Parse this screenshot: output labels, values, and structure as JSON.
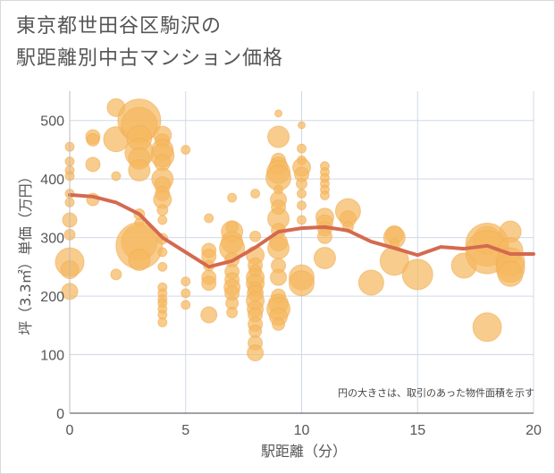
{
  "title_line1": "東京都世田谷区駒沢の",
  "title_line2": "駅距離別中古マンション価格",
  "chart_data": {
    "type": "scatter",
    "xlabel": "駅距離（分）",
    "ylabel": "坪（3.3㎡）単価（万円）",
    "xlim": [
      0,
      20
    ],
    "ylim": [
      0,
      550
    ],
    "x_ticks": [
      0,
      5,
      10,
      15,
      20
    ],
    "y_ticks": [
      0,
      100,
      200,
      300,
      400,
      500
    ],
    "grid": true,
    "note": "円の大きさは、取引のあった物件面積を示す",
    "colors": {
      "bubble": "#f5b860",
      "line": "#d46a50"
    },
    "bubbles": [
      {
        "x": 0,
        "y": 455,
        "r": 5
      },
      {
        "x": 0,
        "y": 430,
        "r": 5
      },
      {
        "x": 0,
        "y": 415,
        "r": 5
      },
      {
        "x": 0,
        "y": 405,
        "r": 5
      },
      {
        "x": 0,
        "y": 375,
        "r": 5
      },
      {
        "x": 0,
        "y": 360,
        "r": 5
      },
      {
        "x": 0,
        "y": 330,
        "r": 8
      },
      {
        "x": 0,
        "y": 305,
        "r": 6
      },
      {
        "x": 0,
        "y": 258,
        "r": 16
      },
      {
        "x": 0,
        "y": 245,
        "r": 10
      },
      {
        "x": 0,
        "y": 208,
        "r": 9
      },
      {
        "x": 1,
        "y": 472,
        "r": 8
      },
      {
        "x": 1,
        "y": 467,
        "r": 7
      },
      {
        "x": 1,
        "y": 425,
        "r": 8
      },
      {
        "x": 1,
        "y": 365,
        "r": 7
      },
      {
        "x": 2,
        "y": 522,
        "r": 10
      },
      {
        "x": 2,
        "y": 468,
        "r": 14
      },
      {
        "x": 2,
        "y": 405,
        "r": 5
      },
      {
        "x": 2,
        "y": 237,
        "r": 6
      },
      {
        "x": 3,
        "y": 500,
        "r": 24
      },
      {
        "x": 3,
        "y": 492,
        "r": 20
      },
      {
        "x": 3,
        "y": 470,
        "r": 14
      },
      {
        "x": 3,
        "y": 445,
        "r": 16
      },
      {
        "x": 3,
        "y": 435,
        "r": 12
      },
      {
        "x": 3,
        "y": 415,
        "r": 12
      },
      {
        "x": 3,
        "y": 340,
        "r": 6
      },
      {
        "x": 3,
        "y": 325,
        "r": 5
      },
      {
        "x": 3,
        "y": 292,
        "r": 20
      },
      {
        "x": 3,
        "y": 286,
        "r": 26
      },
      {
        "x": 3,
        "y": 262,
        "r": 12
      },
      {
        "x": 4,
        "y": 475,
        "r": 10
      },
      {
        "x": 4,
        "y": 465,
        "r": 8
      },
      {
        "x": 4,
        "y": 450,
        "r": 12
      },
      {
        "x": 4,
        "y": 440,
        "r": 13
      },
      {
        "x": 4,
        "y": 428,
        "r": 9
      },
      {
        "x": 4,
        "y": 400,
        "r": 12
      },
      {
        "x": 4,
        "y": 390,
        "r": 9
      },
      {
        "x": 4,
        "y": 375,
        "r": 8
      },
      {
        "x": 4,
        "y": 365,
        "r": 10
      },
      {
        "x": 4,
        "y": 347,
        "r": 6
      },
      {
        "x": 4,
        "y": 330,
        "r": 5
      },
      {
        "x": 4,
        "y": 298,
        "r": 6
      },
      {
        "x": 4,
        "y": 275,
        "r": 5
      },
      {
        "x": 4,
        "y": 250,
        "r": 5
      },
      {
        "x": 4,
        "y": 215,
        "r": 5
      },
      {
        "x": 4,
        "y": 205,
        "r": 5
      },
      {
        "x": 4,
        "y": 195,
        "r": 5
      },
      {
        "x": 4,
        "y": 188,
        "r": 5
      },
      {
        "x": 4,
        "y": 178,
        "r": 5
      },
      {
        "x": 4,
        "y": 168,
        "r": 5
      },
      {
        "x": 4,
        "y": 155,
        "r": 5
      },
      {
        "x": 5,
        "y": 450,
        "r": 5
      },
      {
        "x": 5,
        "y": 225,
        "r": 5
      },
      {
        "x": 5,
        "y": 205,
        "r": 5
      },
      {
        "x": 5,
        "y": 185,
        "r": 5
      },
      {
        "x": 6,
        "y": 333,
        "r": 5
      },
      {
        "x": 6,
        "y": 278,
        "r": 8
      },
      {
        "x": 6,
        "y": 268,
        "r": 8
      },
      {
        "x": 6,
        "y": 252,
        "r": 6
      },
      {
        "x": 6,
        "y": 232,
        "r": 8
      },
      {
        "x": 6,
        "y": 222,
        "r": 8
      },
      {
        "x": 6,
        "y": 168,
        "r": 9
      },
      {
        "x": 7,
        "y": 368,
        "r": 5
      },
      {
        "x": 7,
        "y": 318,
        "r": 7
      },
      {
        "x": 7,
        "y": 310,
        "r": 12
      },
      {
        "x": 7,
        "y": 292,
        "r": 12
      },
      {
        "x": 7,
        "y": 282,
        "r": 14
      },
      {
        "x": 7,
        "y": 262,
        "r": 8
      },
      {
        "x": 7,
        "y": 242,
        "r": 8
      },
      {
        "x": 7,
        "y": 228,
        "r": 8
      },
      {
        "x": 7,
        "y": 215,
        "r": 9
      },
      {
        "x": 7,
        "y": 205,
        "r": 8
      },
      {
        "x": 7,
        "y": 188,
        "r": 7
      },
      {
        "x": 7,
        "y": 172,
        "r": 6
      },
      {
        "x": 8,
        "y": 375,
        "r": 5
      },
      {
        "x": 8,
        "y": 302,
        "r": 6
      },
      {
        "x": 8,
        "y": 270,
        "r": 10
      },
      {
        "x": 8,
        "y": 253,
        "r": 8
      },
      {
        "x": 8,
        "y": 243,
        "r": 7
      },
      {
        "x": 8,
        "y": 232,
        "r": 10
      },
      {
        "x": 8,
        "y": 222,
        "r": 10
      },
      {
        "x": 8,
        "y": 212,
        "r": 8
      },
      {
        "x": 8,
        "y": 205,
        "r": 9
      },
      {
        "x": 8,
        "y": 192,
        "r": 10
      },
      {
        "x": 8,
        "y": 178,
        "r": 9
      },
      {
        "x": 8,
        "y": 168,
        "r": 8
      },
      {
        "x": 8,
        "y": 152,
        "r": 8
      },
      {
        "x": 8,
        "y": 140,
        "r": 7
      },
      {
        "x": 8,
        "y": 120,
        "r": 8
      },
      {
        "x": 8,
        "y": 103,
        "r": 9
      },
      {
        "x": 9,
        "y": 512,
        "r": 4
      },
      {
        "x": 9,
        "y": 472,
        "r": 12
      },
      {
        "x": 9,
        "y": 432,
        "r": 8
      },
      {
        "x": 9,
        "y": 422,
        "r": 10
      },
      {
        "x": 9,
        "y": 412,
        "r": 13
      },
      {
        "x": 9,
        "y": 402,
        "r": 14
      },
      {
        "x": 9,
        "y": 382,
        "r": 5
      },
      {
        "x": 9,
        "y": 365,
        "r": 9
      },
      {
        "x": 9,
        "y": 352,
        "r": 8
      },
      {
        "x": 9,
        "y": 332,
        "r": 12
      },
      {
        "x": 9,
        "y": 312,
        "r": 8
      },
      {
        "x": 9,
        "y": 292,
        "r": 10
      },
      {
        "x": 9,
        "y": 282,
        "r": 12
      },
      {
        "x": 9,
        "y": 252,
        "r": 8
      },
      {
        "x": 9,
        "y": 232,
        "r": 9
      },
      {
        "x": 9,
        "y": 200,
        "r": 8
      },
      {
        "x": 9,
        "y": 187,
        "r": 11
      },
      {
        "x": 9,
        "y": 178,
        "r": 13
      },
      {
        "x": 9,
        "y": 165,
        "r": 10
      },
      {
        "x": 9,
        "y": 152,
        "r": 7
      },
      {
        "x": 10,
        "y": 492,
        "r": 4
      },
      {
        "x": 10,
        "y": 452,
        "r": 5
      },
      {
        "x": 10,
        "y": 432,
        "r": 5
      },
      {
        "x": 10,
        "y": 420,
        "r": 10
      },
      {
        "x": 10,
        "y": 408,
        "r": 8
      },
      {
        "x": 10,
        "y": 392,
        "r": 6
      },
      {
        "x": 10,
        "y": 375,
        "r": 5
      },
      {
        "x": 10,
        "y": 355,
        "r": 5
      },
      {
        "x": 10,
        "y": 330,
        "r": 5
      },
      {
        "x": 10,
        "y": 232,
        "r": 14
      },
      {
        "x": 10,
        "y": 222,
        "r": 14
      },
      {
        "x": 11,
        "y": 422,
        "r": 5
      },
      {
        "x": 11,
        "y": 412,
        "r": 5
      },
      {
        "x": 11,
        "y": 402,
        "r": 5
      },
      {
        "x": 11,
        "y": 392,
        "r": 5
      },
      {
        "x": 11,
        "y": 382,
        "r": 5
      },
      {
        "x": 11,
        "y": 372,
        "r": 5
      },
      {
        "x": 11,
        "y": 335,
        "r": 10
      },
      {
        "x": 11,
        "y": 325,
        "r": 9
      },
      {
        "x": 11,
        "y": 315,
        "r": 8
      },
      {
        "x": 11,
        "y": 302,
        "r": 8
      },
      {
        "x": 11,
        "y": 265,
        "r": 12
      },
      {
        "x": 12,
        "y": 345,
        "r": 14
      },
      {
        "x": 12,
        "y": 332,
        "r": 9
      },
      {
        "x": 12,
        "y": 318,
        "r": 6
      },
      {
        "x": 13,
        "y": 223,
        "r": 14
      },
      {
        "x": 14,
        "y": 305,
        "r": 10
      },
      {
        "x": 14,
        "y": 300,
        "r": 12
      },
      {
        "x": 14,
        "y": 290,
        "r": 5
      },
      {
        "x": 14,
        "y": 260,
        "r": 16
      },
      {
        "x": 15,
        "y": 237,
        "r": 17
      },
      {
        "x": 17,
        "y": 252,
        "r": 14
      },
      {
        "x": 18,
        "y": 295,
        "r": 16
      },
      {
        "x": 18,
        "y": 288,
        "r": 24
      },
      {
        "x": 18,
        "y": 275,
        "r": 24
      },
      {
        "x": 18,
        "y": 147,
        "r": 16
      },
      {
        "x": 19,
        "y": 310,
        "r": 12
      },
      {
        "x": 19,
        "y": 278,
        "r": 14
      },
      {
        "x": 19,
        "y": 258,
        "r": 16
      },
      {
        "x": 19,
        "y": 248,
        "r": 16
      },
      {
        "x": 19,
        "y": 238,
        "r": 14
      }
    ],
    "line": {
      "x": [
        0,
        1,
        2,
        3,
        4,
        5,
        6,
        7,
        8,
        9,
        10,
        11,
        12,
        13,
        14,
        15,
        16,
        17,
        18,
        19,
        20
      ],
      "y": [
        373,
        370,
        360,
        340,
        300,
        275,
        250,
        260,
        283,
        310,
        316,
        318,
        312,
        293,
        282,
        270,
        284,
        281,
        286,
        272,
        272
      ]
    }
  }
}
